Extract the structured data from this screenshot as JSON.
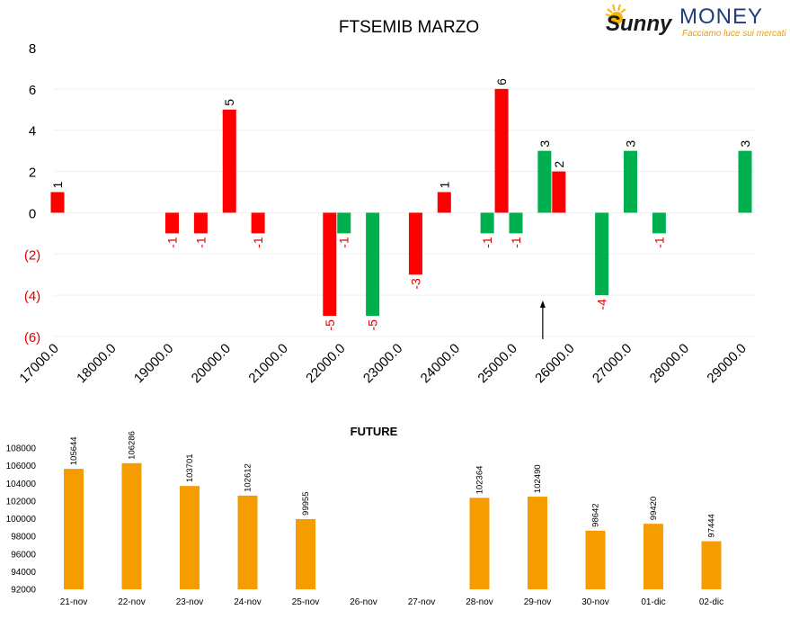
{
  "brand": {
    "sunny": "Sunny",
    "money": "MONEY",
    "tagline": "Facciamo luce sui mercati"
  },
  "colors": {
    "red": "#ff0000",
    "green": "#00b050",
    "orange": "#f59c00",
    "neg_label": "#e00000",
    "text": "#000000",
    "grid": "#efefef"
  },
  "chart_data": [
    {
      "type": "bar",
      "title": "FTSEMIB MARZO",
      "xlabel": "",
      "ylabel": "",
      "ylim": [
        -6,
        8
      ],
      "ytick_labels": [
        "8",
        "6",
        "4",
        "2",
        "0",
        "(2)",
        "(4)",
        "(6)"
      ],
      "ytick_values": [
        8,
        6,
        4,
        2,
        0,
        -2,
        -4,
        -6
      ],
      "xtick_labels": [
        "17000.0",
        "18000.0",
        "19000.0",
        "20000.0",
        "21000.0",
        "22000.0",
        "23000.0",
        "24000.0",
        "25000.0",
        "26000.0",
        "27000.0",
        "28000.0",
        "29000.0"
      ],
      "xtick_values": [
        17000,
        18000,
        19000,
        20000,
        21000,
        22000,
        23000,
        24000,
        25000,
        26000,
        27000,
        28000,
        29000
      ],
      "grid": true,
      "legend": "none",
      "annotation": "arrow at 25500",
      "arrow_x": 25500,
      "series": [
        {
          "color": "red",
          "points": [
            {
              "x": 17000,
              "y": 1,
              "label": "1"
            },
            {
              "x": 19000,
              "y": -1,
              "label": "-1"
            },
            {
              "x": 19500,
              "y": -1,
              "label": "-1"
            },
            {
              "x": 20000,
              "y": 5,
              "label": "5"
            },
            {
              "x": 20500,
              "y": -1,
              "label": "-1"
            },
            {
              "x": 21750,
              "y": -5,
              "label": "-5"
            },
            {
              "x": 23250,
              "y": -3,
              "label": "-3"
            },
            {
              "x": 23750,
              "y": 1,
              "label": "1"
            },
            {
              "x": 24750,
              "y": 6,
              "label": "6"
            },
            {
              "x": 25750,
              "y": 2,
              "label": "2"
            }
          ]
        },
        {
          "color": "green",
          "points": [
            {
              "x": 22000,
              "y": -1,
              "label": "-1"
            },
            {
              "x": 22500,
              "y": -5,
              "label": "-5"
            },
            {
              "x": 24500,
              "y": -1,
              "label": "-1"
            },
            {
              "x": 25000,
              "y": -1,
              "label": "-1"
            },
            {
              "x": 25500,
              "y": 3,
              "label": "3"
            },
            {
              "x": 26500,
              "y": -4,
              "label": "-4"
            },
            {
              "x": 27000,
              "y": 3,
              "label": "3"
            },
            {
              "x": 27500,
              "y": -1,
              "label": "-1"
            },
            {
              "x": 29000,
              "y": 3,
              "label": "3"
            }
          ]
        }
      ]
    },
    {
      "type": "bar",
      "title": "FUTURE",
      "xlabel": "",
      "ylabel": "",
      "ylim": [
        92000,
        108000
      ],
      "ytick_labels": [
        "108000",
        "106000",
        "104000",
        "102000",
        "100000",
        "98000",
        "96000",
        "94000",
        "92000"
      ],
      "ytick_values": [
        108000,
        106000,
        104000,
        102000,
        100000,
        98000,
        96000,
        94000,
        92000
      ],
      "categories": [
        "21-nov",
        "22-nov",
        "23-nov",
        "24-nov",
        "25-nov",
        "26-nov",
        "27-nov",
        "28-nov",
        "29-nov",
        "30-nov",
        "01-dic",
        "02-dic"
      ],
      "values": [
        105644,
        106286,
        103701,
        102612,
        99955,
        null,
        null,
        102364,
        102490,
        98642,
        99420,
        97444
      ],
      "value_labels": [
        "105644",
        "106286",
        "103701",
        "102612",
        "99955",
        "",
        "",
        "102364",
        "102490",
        "98642",
        "99420",
        "97444"
      ],
      "color": "orange",
      "grid": false,
      "legend": "none"
    }
  ]
}
